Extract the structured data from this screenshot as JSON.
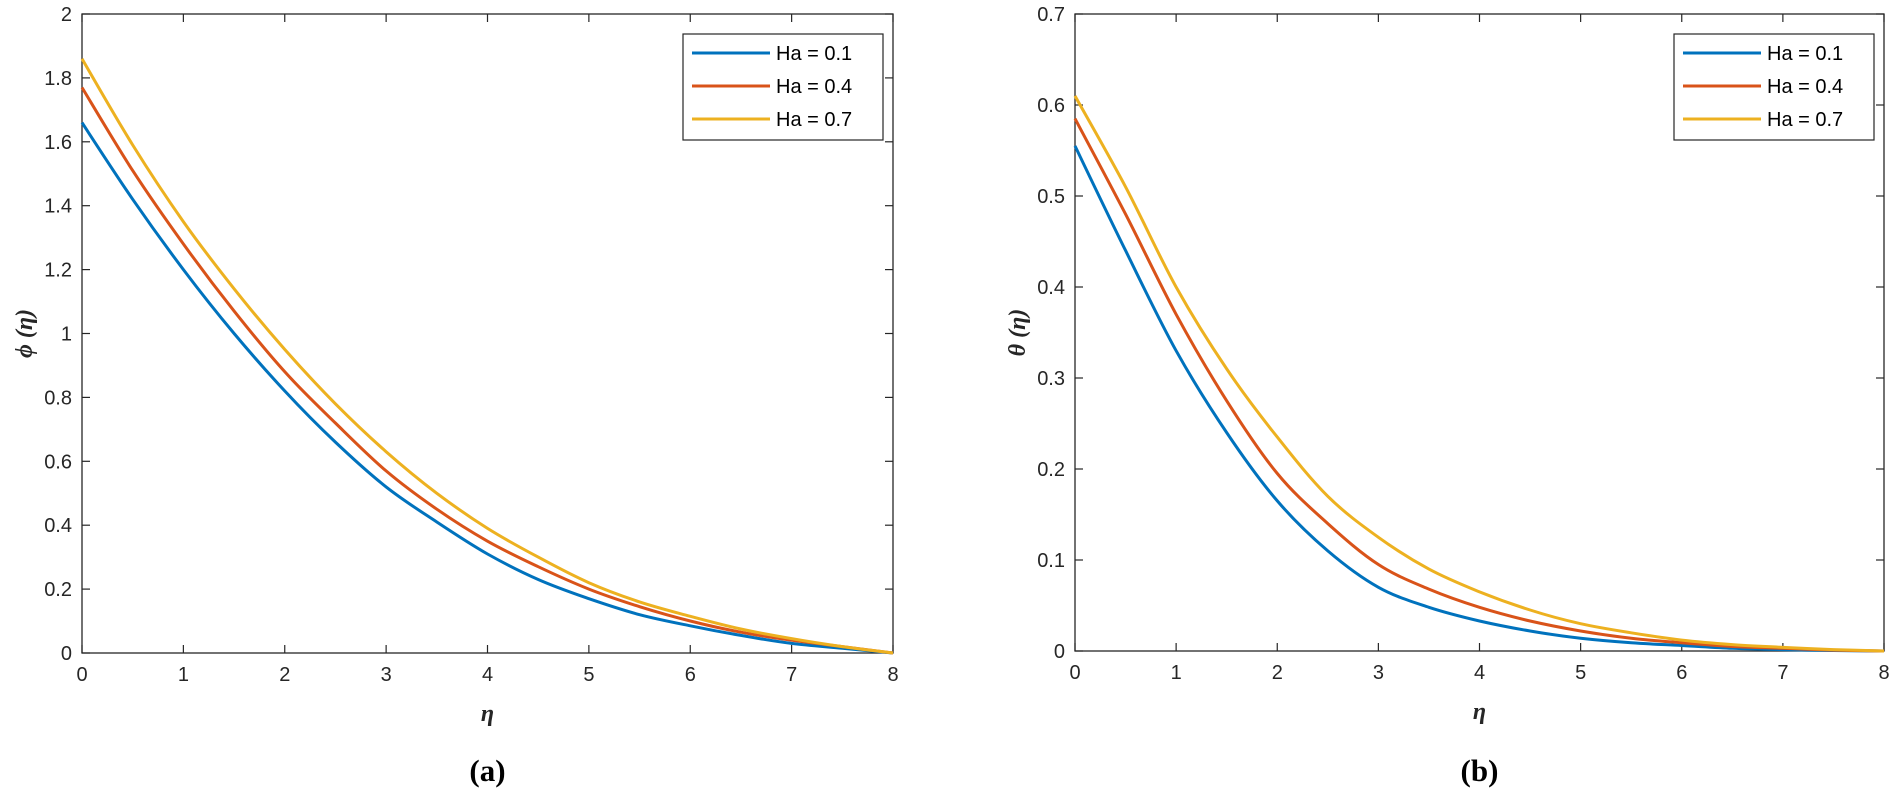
{
  "chart_data": [
    {
      "type": "line",
      "panel_label": "(a)",
      "xlabel": "η",
      "ylabel": "ϕ (η)",
      "xlim": [
        0,
        8
      ],
      "ylim": [
        0,
        2
      ],
      "xticks": [
        "0",
        "1",
        "2",
        "3",
        "4",
        "5",
        "6",
        "7",
        "8"
      ],
      "yticks": [
        "0",
        "0.2",
        "0.4",
        "0.6",
        "0.8",
        "1",
        "1.2",
        "1.4",
        "1.6",
        "1.8",
        "2"
      ],
      "grid": false,
      "legend_position": "top-right",
      "x": [
        0,
        0.5,
        1,
        1.5,
        2,
        2.5,
        3,
        3.5,
        4,
        4.5,
        5,
        5.5,
        6,
        6.5,
        7,
        7.5,
        8
      ],
      "series": [
        {
          "name": "Ha = 0.1",
          "color": "#0072BD",
          "values": [
            1.66,
            1.42,
            1.2,
            1.0,
            0.82,
            0.66,
            0.52,
            0.41,
            0.31,
            0.23,
            0.17,
            0.12,
            0.085,
            0.055,
            0.03,
            0.015,
            0
          ]
        },
        {
          "name": "Ha = 0.4",
          "color": "#D95319",
          "values": [
            1.77,
            1.51,
            1.28,
            1.07,
            0.88,
            0.72,
            0.57,
            0.45,
            0.35,
            0.27,
            0.2,
            0.145,
            0.1,
            0.065,
            0.04,
            0.02,
            0
          ]
        },
        {
          "name": "Ha = 0.7",
          "color": "#EDB120",
          "values": [
            1.86,
            1.59,
            1.35,
            1.14,
            0.95,
            0.78,
            0.63,
            0.5,
            0.39,
            0.3,
            0.22,
            0.16,
            0.115,
            0.075,
            0.045,
            0.02,
            0
          ]
        }
      ]
    },
    {
      "type": "line",
      "panel_label": "(b)",
      "xlabel": "η",
      "ylabel": "θ (η)",
      "xlim": [
        0,
        8
      ],
      "ylim": [
        0,
        0.7
      ],
      "xticks": [
        "0",
        "1",
        "2",
        "3",
        "4",
        "5",
        "6",
        "7",
        "8"
      ],
      "yticks": [
        "0",
        "0.1",
        "0.2",
        "0.3",
        "0.4",
        "0.5",
        "0.6",
        "0.7"
      ],
      "grid": false,
      "legend_position": "top-right",
      "x": [
        0,
        0.5,
        1,
        1.5,
        2,
        2.5,
        3,
        3.5,
        4,
        4.5,
        5,
        5.5,
        6,
        6.5,
        7,
        7.5,
        8
      ],
      "series": [
        {
          "name": "Ha = 0.1",
          "color": "#0072BD",
          "values": [
            0.555,
            0.44,
            0.33,
            0.24,
            0.165,
            0.11,
            0.07,
            0.048,
            0.033,
            0.022,
            0.014,
            0.009,
            0.006,
            0.003,
            0.0015,
            0.0005,
            0
          ]
        },
        {
          "name": "Ha = 0.4",
          "color": "#D95319",
          "values": [
            0.585,
            0.48,
            0.37,
            0.275,
            0.195,
            0.14,
            0.095,
            0.068,
            0.048,
            0.033,
            0.022,
            0.014,
            0.009,
            0.005,
            0.003,
            0.001,
            0
          ]
        },
        {
          "name": "Ha = 0.7",
          "color": "#EDB120",
          "values": [
            0.61,
            0.51,
            0.4,
            0.31,
            0.235,
            0.17,
            0.125,
            0.09,
            0.065,
            0.045,
            0.03,
            0.02,
            0.012,
            0.007,
            0.004,
            0.0015,
            0
          ]
        }
      ]
    }
  ]
}
